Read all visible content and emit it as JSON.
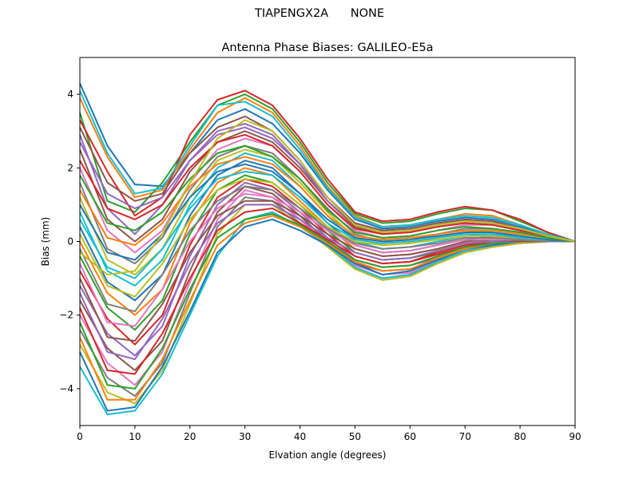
{
  "figure": {
    "suptitle": "TIAPENGX2A      NONE"
  },
  "chart_data": {
    "type": "line",
    "title": "Antenna Phase Biases: GALILEO-E5a",
    "xlabel": "Elvation angle (degrees)",
    "ylabel": "Bias (mm)",
    "xlim": [
      0,
      90
    ],
    "ylim": [
      -5,
      5
    ],
    "xticks": [
      0,
      10,
      20,
      30,
      40,
      50,
      60,
      70,
      80,
      90
    ],
    "yticks": [
      -4,
      -2,
      0,
      2,
      4
    ],
    "grid": false,
    "legend": "none",
    "x": [
      0,
      5,
      10,
      15,
      20,
      25,
      30,
      35,
      40,
      45,
      50,
      55,
      60,
      65,
      70,
      75,
      80,
      85,
      90
    ],
    "series": [
      {
        "color": "#1f77b4",
        "values": [
          4.3,
          2.6,
          1.55,
          1.5,
          2.4,
          3.3,
          3.6,
          3.2,
          2.4,
          1.4,
          0.6,
          0.35,
          0.4,
          0.55,
          0.65,
          0.6,
          0.4,
          0.2,
          0.0
        ]
      },
      {
        "color": "#ff7f0e",
        "values": [
          3.9,
          2.3,
          1.2,
          1.4,
          2.5,
          3.5,
          3.9,
          3.5,
          2.6,
          1.5,
          0.7,
          0.4,
          0.45,
          0.6,
          0.75,
          0.7,
          0.45,
          0.2,
          0.0
        ]
      },
      {
        "color": "#2ca02c",
        "values": [
          3.5,
          1.1,
          0.8,
          1.6,
          2.7,
          3.7,
          4.0,
          3.6,
          2.7,
          1.6,
          0.75,
          0.5,
          0.55,
          0.75,
          0.9,
          0.85,
          0.55,
          0.25,
          0.0
        ]
      },
      {
        "color": "#d62728",
        "values": [
          3.3,
          1.9,
          0.7,
          1.2,
          2.9,
          3.85,
          4.1,
          3.7,
          2.8,
          1.7,
          0.8,
          0.55,
          0.6,
          0.8,
          0.95,
          0.85,
          0.6,
          0.25,
          0.0
        ]
      },
      {
        "color": "#9467bd",
        "values": [
          2.9,
          0.9,
          0.2,
          1.0,
          2.2,
          3.0,
          3.2,
          2.9,
          2.1,
          1.2,
          0.5,
          0.3,
          0.35,
          0.5,
          0.6,
          0.55,
          0.35,
          0.15,
          0.0
        ]
      },
      {
        "color": "#8c564b",
        "values": [
          2.5,
          0.6,
          0.0,
          0.6,
          1.9,
          2.7,
          3.0,
          2.7,
          2.0,
          1.1,
          0.4,
          0.2,
          0.25,
          0.4,
          0.5,
          0.45,
          0.3,
          0.15,
          0.0
        ]
      },
      {
        "color": "#e377c2",
        "values": [
          2.0,
          0.3,
          -0.3,
          0.3,
          1.6,
          2.5,
          2.8,
          2.6,
          1.9,
          1.0,
          0.3,
          0.1,
          0.15,
          0.3,
          0.45,
          0.45,
          0.3,
          0.1,
          0.0
        ]
      },
      {
        "color": "#7f7f7f",
        "values": [
          1.6,
          -0.2,
          -0.6,
          0.1,
          1.4,
          2.3,
          2.6,
          2.4,
          1.7,
          0.9,
          0.2,
          0.0,
          0.05,
          0.2,
          0.35,
          0.35,
          0.25,
          0.1,
          0.0
        ]
      },
      {
        "color": "#bcbd22",
        "values": [
          1.2,
          -0.5,
          -0.9,
          -0.2,
          1.2,
          2.2,
          2.5,
          2.3,
          1.6,
          0.8,
          0.1,
          -0.1,
          -0.05,
          0.1,
          0.25,
          0.3,
          0.2,
          0.1,
          0.0
        ]
      },
      {
        "color": "#17becf",
        "values": [
          0.8,
          -0.8,
          -1.2,
          -0.5,
          1.0,
          2.0,
          2.4,
          2.2,
          1.5,
          0.7,
          0.0,
          -0.2,
          -0.15,
          0.0,
          0.15,
          0.2,
          0.15,
          0.05,
          0.0
        ]
      },
      {
        "color": "#1f77b4",
        "values": [
          0.4,
          -1.1,
          -1.6,
          -0.9,
          0.7,
          1.8,
          2.2,
          2.0,
          1.3,
          0.5,
          -0.1,
          -0.3,
          -0.25,
          -0.1,
          0.05,
          0.15,
          0.1,
          0.05,
          0.0
        ]
      },
      {
        "color": "#ff7f0e",
        "values": [
          0.0,
          -1.4,
          -2.0,
          -1.3,
          0.5,
          1.6,
          2.0,
          1.8,
          1.1,
          0.4,
          -0.2,
          -0.4,
          -0.35,
          -0.2,
          0.0,
          0.1,
          0.1,
          0.05,
          0.0
        ]
      },
      {
        "color": "#2ca02c",
        "values": [
          -0.4,
          -1.8,
          -2.4,
          -1.6,
          0.2,
          1.4,
          1.8,
          1.6,
          1.0,
          0.3,
          -0.3,
          -0.5,
          -0.45,
          -0.3,
          -0.1,
          0.05,
          0.05,
          0.0,
          0.0
        ]
      },
      {
        "color": "#d62728",
        "values": [
          -0.8,
          -2.1,
          -2.8,
          -2.0,
          -0.1,
          1.2,
          1.7,
          1.5,
          0.9,
          0.2,
          -0.4,
          -0.6,
          -0.55,
          -0.35,
          -0.15,
          0.0,
          0.05,
          0.0,
          0.0
        ]
      },
      {
        "color": "#9467bd",
        "values": [
          -1.2,
          -2.5,
          -3.1,
          -2.3,
          -0.4,
          1.0,
          1.6,
          1.4,
          0.8,
          0.1,
          -0.5,
          -0.7,
          -0.65,
          -0.45,
          -0.2,
          -0.05,
          0.0,
          0.0,
          0.0
        ]
      },
      {
        "color": "#8c564b",
        "values": [
          -1.6,
          -2.9,
          -3.5,
          -2.7,
          -0.8,
          0.8,
          1.5,
          1.3,
          0.7,
          0.0,
          -0.6,
          -0.8,
          -0.75,
          -0.5,
          -0.25,
          -0.1,
          -0.05,
          0.0,
          0.0
        ]
      },
      {
        "color": "#e377c2",
        "values": [
          -2.0,
          -3.3,
          -3.9,
          -3.0,
          -1.1,
          0.6,
          1.4,
          1.2,
          0.6,
          -0.05,
          -0.65,
          -0.9,
          -0.85,
          -0.55,
          -0.3,
          -0.1,
          -0.05,
          0.0,
          0.0
        ]
      },
      {
        "color": "#7f7f7f",
        "values": [
          -2.4,
          -3.7,
          -4.2,
          -3.3,
          -1.4,
          0.4,
          1.2,
          1.1,
          0.5,
          -0.1,
          -0.7,
          -1.0,
          -0.9,
          -0.6,
          -0.3,
          -0.15,
          -0.05,
          0.0,
          0.0
        ]
      },
      {
        "color": "#bcbd22",
        "values": [
          -2.8,
          -4.1,
          -4.4,
          -3.5,
          -1.7,
          0.2,
          1.0,
          1.0,
          0.45,
          -0.15,
          -0.75,
          -1.05,
          -0.95,
          -0.6,
          -0.3,
          -0.15,
          -0.05,
          0.0,
          0.0
        ]
      },
      {
        "color": "#17becf",
        "values": [
          -3.4,
          -4.7,
          -4.6,
          -3.6,
          -2.0,
          -0.4,
          0.6,
          0.8,
          0.4,
          -0.1,
          -0.7,
          -1.0,
          -0.9,
          -0.55,
          -0.25,
          -0.1,
          0.0,
          0.0,
          0.0
        ]
      },
      {
        "color": "#1f77b4",
        "values": [
          -3.0,
          -4.6,
          -4.5,
          -3.4,
          -1.9,
          -0.3,
          0.4,
          0.6,
          0.3,
          -0.1,
          -0.6,
          -0.9,
          -0.8,
          -0.5,
          -0.2,
          -0.1,
          0.0,
          0.0,
          0.0
        ]
      },
      {
        "color": "#ff7f0e",
        "values": [
          -2.6,
          -4.3,
          -4.3,
          -3.2,
          -1.6,
          -0.1,
          0.5,
          0.7,
          0.4,
          -0.05,
          -0.55,
          -0.8,
          -0.75,
          -0.45,
          -0.2,
          -0.05,
          0.0,
          0.0,
          0.0
        ]
      },
      {
        "color": "#2ca02c",
        "values": [
          -2.2,
          -3.9,
          -4.0,
          -2.9,
          -1.3,
          0.1,
          0.6,
          0.75,
          0.45,
          0.0,
          -0.5,
          -0.7,
          -0.65,
          -0.4,
          -0.15,
          -0.05,
          0.0,
          0.0,
          0.0
        ]
      },
      {
        "color": "#d62728",
        "values": [
          -1.8,
          -3.5,
          -3.6,
          -2.5,
          -1.0,
          0.3,
          0.8,
          0.9,
          0.5,
          0.05,
          -0.4,
          -0.6,
          -0.55,
          -0.3,
          -0.1,
          0.0,
          0.0,
          0.0,
          0.0
        ]
      },
      {
        "color": "#9467bd",
        "values": [
          -1.4,
          -3.0,
          -3.2,
          -2.1,
          -0.6,
          0.5,
          1.0,
          1.0,
          0.6,
          0.1,
          -0.3,
          -0.5,
          -0.45,
          -0.25,
          -0.05,
          0.0,
          0.0,
          0.0,
          0.0
        ]
      },
      {
        "color": "#8c564b",
        "values": [
          -1.0,
          -2.6,
          -2.7,
          -1.7,
          -0.3,
          0.7,
          1.1,
          1.1,
          0.7,
          0.2,
          -0.2,
          -0.4,
          -0.35,
          -0.2,
          0.0,
          0.05,
          0.0,
          0.0,
          0.0
        ]
      },
      {
        "color": "#e377c2",
        "values": [
          -0.6,
          -2.2,
          -2.3,
          -1.3,
          0.0,
          0.9,
          1.3,
          1.2,
          0.8,
          0.3,
          -0.1,
          -0.3,
          -0.25,
          -0.1,
          0.05,
          0.05,
          0.05,
          0.0,
          0.0
        ]
      },
      {
        "color": "#7f7f7f",
        "values": [
          -0.2,
          -1.7,
          -1.9,
          -0.9,
          0.3,
          1.1,
          1.5,
          1.4,
          0.9,
          0.35,
          -0.05,
          -0.2,
          -0.15,
          -0.05,
          0.1,
          0.1,
          0.05,
          0.0,
          0.0
        ]
      },
      {
        "color": "#bcbd22",
        "values": [
          0.2,
          -1.2,
          -1.5,
          -0.6,
          0.6,
          1.4,
          1.7,
          1.6,
          1.0,
          0.4,
          0.0,
          -0.1,
          -0.05,
          0.05,
          0.15,
          0.15,
          0.1,
          0.05,
          0.0
        ]
      },
      {
        "color": "#17becf",
        "values": [
          0.6,
          -0.7,
          -1.0,
          -0.2,
          0.9,
          1.7,
          1.9,
          1.8,
          1.2,
          0.5,
          0.05,
          -0.05,
          0.0,
          0.1,
          0.2,
          0.2,
          0.1,
          0.05,
          0.0
        ]
      },
      {
        "color": "#1f77b4",
        "values": [
          1.0,
          -0.3,
          -0.5,
          0.2,
          1.2,
          1.9,
          2.1,
          1.9,
          1.3,
          0.6,
          0.1,
          0.0,
          0.05,
          0.15,
          0.25,
          0.25,
          0.15,
          0.05,
          0.0
        ]
      },
      {
        "color": "#ff7f0e",
        "values": [
          1.4,
          0.1,
          -0.1,
          0.5,
          1.5,
          2.1,
          2.3,
          2.1,
          1.5,
          0.7,
          0.15,
          0.05,
          0.1,
          0.2,
          0.3,
          0.3,
          0.2,
          0.1,
          0.0
        ]
      },
      {
        "color": "#2ca02c",
        "values": [
          1.8,
          0.5,
          0.3,
          0.8,
          1.7,
          2.4,
          2.6,
          2.3,
          1.7,
          0.85,
          0.25,
          0.1,
          0.15,
          0.3,
          0.4,
          0.35,
          0.25,
          0.1,
          0.0
        ]
      },
      {
        "color": "#d62728",
        "values": [
          2.2,
          0.9,
          0.6,
          1.0,
          2.0,
          2.7,
          2.9,
          2.6,
          1.9,
          1.0,
          0.35,
          0.2,
          0.25,
          0.4,
          0.5,
          0.45,
          0.3,
          0.15,
          0.0
        ]
      },
      {
        "color": "#9467bd",
        "values": [
          2.7,
          1.3,
          0.9,
          1.2,
          2.2,
          2.9,
          3.1,
          2.8,
          2.1,
          1.1,
          0.45,
          0.25,
          0.3,
          0.45,
          0.55,
          0.5,
          0.35,
          0.15,
          0.0
        ]
      },
      {
        "color": "#8c564b",
        "values": [
          3.1,
          1.6,
          1.1,
          1.3,
          2.4,
          3.1,
          3.4,
          3.0,
          2.2,
          1.2,
          0.5,
          0.3,
          0.35,
          0.5,
          0.6,
          0.55,
          0.35,
          0.15,
          0.0
        ]
      },
      {
        "color": "#17becf",
        "values": [
          4.1,
          2.4,
          1.3,
          1.45,
          2.6,
          3.7,
          3.8,
          3.4,
          2.5,
          1.45,
          0.65,
          0.4,
          0.45,
          0.6,
          0.7,
          0.65,
          0.45,
          0.2,
          0.0
        ]
      },
      {
        "color": "#bcbd22",
        "values": [
          -0.3,
          -0.9,
          -0.8,
          0.2,
          1.6,
          2.8,
          3.3,
          3.0,
          2.2,
          1.2,
          0.45,
          0.25,
          0.3,
          0.45,
          0.55,
          0.5,
          0.35,
          0.15,
          0.0
        ]
      }
    ]
  }
}
